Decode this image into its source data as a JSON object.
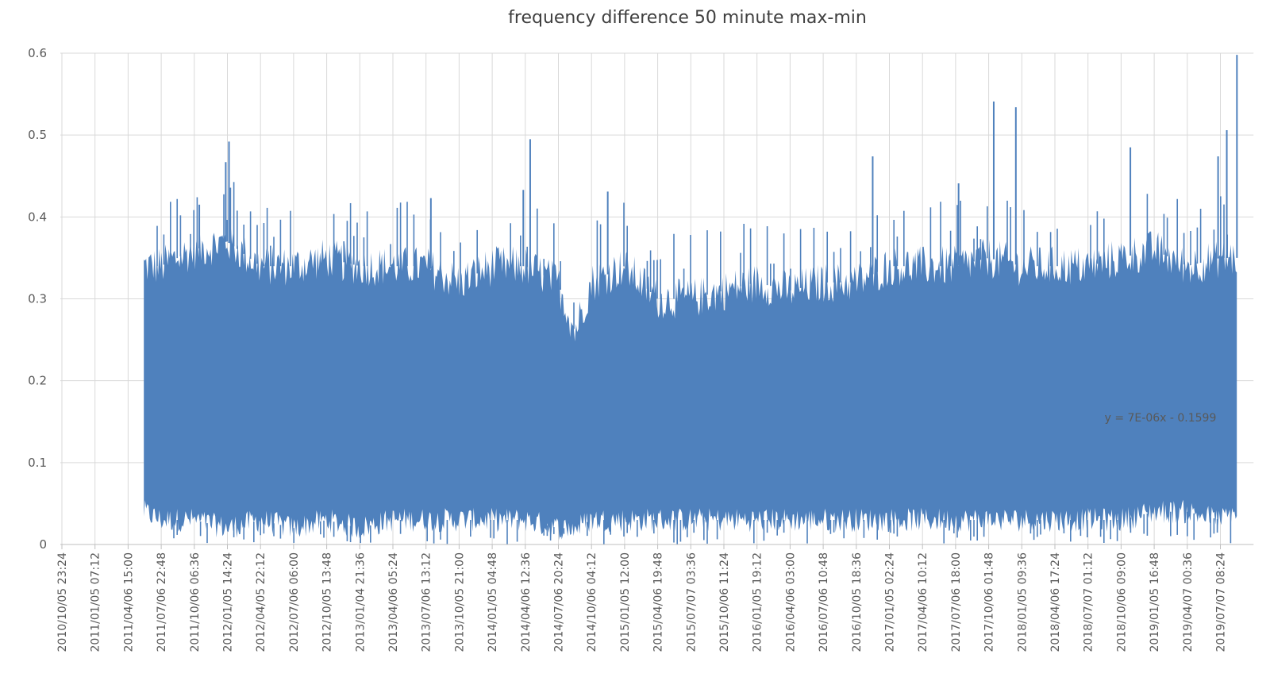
{
  "chart_data": {
    "type": "line",
    "title": "frequency difference 50 minute max-min",
    "xlabel": "",
    "ylabel": "",
    "ylim": [
      0,
      0.6
    ],
    "y_ticks": [
      0,
      0.1,
      0.2,
      0.3,
      0.4,
      0.5,
      0.6
    ],
    "y_tick_labels": [
      "0",
      "0.1",
      "0.2",
      "0.3",
      "0.4",
      "0.5",
      "0.6"
    ],
    "grid": true,
    "series_color": "#4f81bd",
    "x_tick_labels": [
      "2010/10/05 23:24",
      "2011/01/05 07:12",
      "2011/04/06 15:00",
      "2011/07/06 22:48",
      "2011/10/06 06:36",
      "2012/01/05 14:24",
      "2012/04/05 22:12",
      "2012/07/06 06:00",
      "2012/10/05 13:48",
      "2013/01/04 21:36",
      "2013/04/06 05:24",
      "2013/07/06 13:12",
      "2013/10/05 21:00",
      "2014/01/05 04:48",
      "2014/04/06 12:36",
      "2014/07/06 20:24",
      "2014/10/06 04:12",
      "2015/01/05 12:00",
      "2015/04/06 19:48",
      "2015/07/07 03:36",
      "2015/10/06 11:24",
      "2016/01/05 19:12",
      "2016/04/06 03:00",
      "2016/07/06 10:48",
      "2016/10/05 18:36",
      "2017/01/05 02:24",
      "2017/04/06 10:12",
      "2017/07/06 18:00",
      "2017/10/06 01:48",
      "2018/01/05 09:36",
      "2018/04/06 17:24",
      "2018/07/07 01:12",
      "2018/10/06 09:00",
      "2019/01/05 16:48",
      "2019/04/07 00:36",
      "2019/07/07 08:24"
    ],
    "series": [
      {
        "x": [
          "2011/05/20",
          "2011/07/06",
          "2011/10/06",
          "2012/01/05",
          "2012/04/05",
          "2012/07/06",
          "2012/10/05",
          "2013/01/04",
          "2013/04/06",
          "2013/07/06",
          "2013/10/05",
          "2014/01/05",
          "2014/04/06",
          "2014/07/06",
          "2014/08/21",
          "2014/10/06",
          "2015/01/05",
          "2015/04/06",
          "2015/07/07",
          "2015/10/06",
          "2016/01/05",
          "2016/04/06",
          "2016/07/06",
          "2016/10/05",
          "2017/01/05",
          "2017/04/06",
          "2017/07/06",
          "2017/10/06",
          "2018/01/05",
          "2018/04/06",
          "2018/07/07",
          "2018/10/06",
          "2019/01/05",
          "2019/04/07",
          "2019/07/07",
          "2019/08/22"
        ],
        "upper": [
          0.34,
          0.34,
          0.36,
          0.37,
          0.34,
          0.34,
          0.35,
          0.34,
          0.34,
          0.34,
          0.32,
          0.34,
          0.34,
          0.32,
          0.26,
          0.32,
          0.34,
          0.3,
          0.3,
          0.31,
          0.32,
          0.31,
          0.32,
          0.32,
          0.34,
          0.34,
          0.34,
          0.35,
          0.34,
          0.34,
          0.34,
          0.35,
          0.36,
          0.34,
          0.35,
          0.35
        ],
        "lower": [
          0.04,
          0.03,
          0.03,
          0.02,
          0.03,
          0.02,
          0.03,
          0.02,
          0.03,
          0.03,
          0.03,
          0.03,
          0.03,
          0.02,
          0.02,
          0.03,
          0.03,
          0.03,
          0.03,
          0.03,
          0.03,
          0.03,
          0.03,
          0.03,
          0.03,
          0.03,
          0.03,
          0.03,
          0.03,
          0.03,
          0.03,
          0.03,
          0.04,
          0.04,
          0.03,
          0.04
        ],
        "peaks": [
          {
            "x": "2011/10/20",
            "y": 0.415
          },
          {
            "x": "2012/01/01",
            "y": 0.467
          },
          {
            "x": "2012/01/10",
            "y": 0.492
          },
          {
            "x": "2013/07/20",
            "y": 0.423
          },
          {
            "x": "2014/04/01",
            "y": 0.433
          },
          {
            "x": "2014/04/20",
            "y": 0.495
          },
          {
            "x": "2014/11/20",
            "y": 0.431
          },
          {
            "x": "2016/11/20",
            "y": 0.474
          },
          {
            "x": "2017/07/15",
            "y": 0.441
          },
          {
            "x": "2017/10/20",
            "y": 0.541
          },
          {
            "x": "2017/12/20",
            "y": 0.534
          },
          {
            "x": "2018/11/01",
            "y": 0.485
          },
          {
            "x": "2019/07/01",
            "y": 0.474
          },
          {
            "x": "2019/07/25",
            "y": 0.506
          },
          {
            "x": "2019/08/22",
            "y": 0.598
          }
        ]
      }
    ],
    "trendline_label": "y = 7E-06x - 0.1599"
  }
}
